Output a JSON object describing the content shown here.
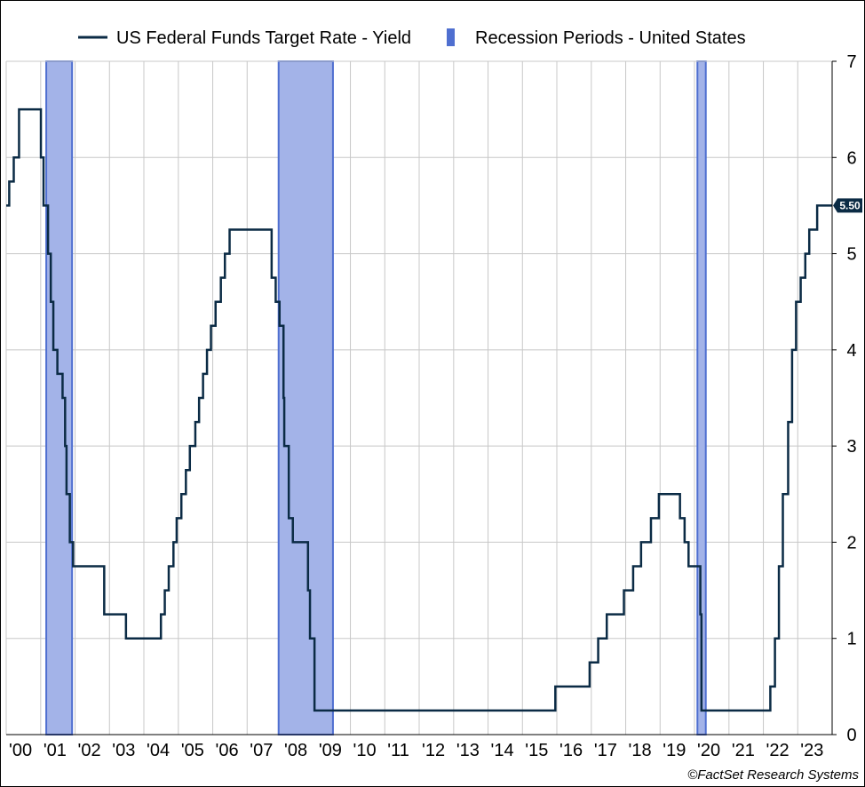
{
  "chart_data": {
    "type": "line",
    "title": "",
    "xlabel": "",
    "ylabel": "",
    "x_tick_labels": [
      "'00",
      "'01",
      "'02",
      "'03",
      "'04",
      "'05",
      "'06",
      "'07",
      "'08",
      "'09",
      "'10",
      "'11",
      "'12",
      "'13",
      "'14",
      "'15",
      "'16",
      "'17",
      "'18",
      "'19",
      "'20",
      "'21",
      "'22",
      "'23"
    ],
    "xlim": [
      "2000-01-01",
      "2024-01-01"
    ],
    "ylim": [
      0,
      7
    ],
    "y_ticks": [
      0,
      1,
      2,
      3,
      4,
      5,
      6,
      7
    ],
    "y_axis_position": "right",
    "grid": true,
    "legend_position": "top",
    "series": [
      {
        "name": "US Federal Funds Target Rate - Yield",
        "color": "#0b2b45",
        "kind": "step",
        "points": [
          [
            "2000-01-01",
            5.5
          ],
          [
            "2000-02-02",
            5.75
          ],
          [
            "2000-03-21",
            6.0
          ],
          [
            "2000-05-16",
            6.5
          ],
          [
            "2001-01-03",
            6.0
          ],
          [
            "2001-01-31",
            5.5
          ],
          [
            "2001-03-20",
            5.0
          ],
          [
            "2001-04-18",
            4.5
          ],
          [
            "2001-05-15",
            4.0
          ],
          [
            "2001-06-27",
            3.75
          ],
          [
            "2001-08-21",
            3.5
          ],
          [
            "2001-09-17",
            3.0
          ],
          [
            "2001-10-02",
            2.5
          ],
          [
            "2001-11-06",
            2.0
          ],
          [
            "2001-12-11",
            1.75
          ],
          [
            "2002-11-06",
            1.25
          ],
          [
            "2003-06-25",
            1.0
          ],
          [
            "2004-06-30",
            1.25
          ],
          [
            "2004-08-10",
            1.5
          ],
          [
            "2004-09-21",
            1.75
          ],
          [
            "2004-11-10",
            2.0
          ],
          [
            "2004-12-14",
            2.25
          ],
          [
            "2005-02-02",
            2.5
          ],
          [
            "2005-03-22",
            2.75
          ],
          [
            "2005-05-03",
            3.0
          ],
          [
            "2005-06-30",
            3.25
          ],
          [
            "2005-08-09",
            3.5
          ],
          [
            "2005-09-20",
            3.75
          ],
          [
            "2005-11-01",
            4.0
          ],
          [
            "2005-12-13",
            4.25
          ],
          [
            "2006-01-31",
            4.5
          ],
          [
            "2006-03-28",
            4.75
          ],
          [
            "2006-05-10",
            5.0
          ],
          [
            "2006-06-29",
            5.25
          ],
          [
            "2007-09-18",
            4.75
          ],
          [
            "2007-10-31",
            4.5
          ],
          [
            "2007-12-11",
            4.25
          ],
          [
            "2008-01-22",
            3.5
          ],
          [
            "2008-01-30",
            3.0
          ],
          [
            "2008-03-18",
            2.25
          ],
          [
            "2008-04-30",
            2.0
          ],
          [
            "2008-10-08",
            1.5
          ],
          [
            "2008-10-29",
            1.0
          ],
          [
            "2008-12-16",
            0.25
          ],
          [
            "2015-12-16",
            0.5
          ],
          [
            "2016-12-14",
            0.75
          ],
          [
            "2017-03-15",
            1.0
          ],
          [
            "2017-06-14",
            1.25
          ],
          [
            "2017-12-13",
            1.5
          ],
          [
            "2018-03-21",
            1.75
          ],
          [
            "2018-06-13",
            2.0
          ],
          [
            "2018-09-26",
            2.25
          ],
          [
            "2018-12-19",
            2.5
          ],
          [
            "2019-07-31",
            2.25
          ],
          [
            "2019-09-18",
            2.0
          ],
          [
            "2019-10-30",
            1.75
          ],
          [
            "2020-03-03",
            1.25
          ],
          [
            "2020-03-15",
            0.25
          ],
          [
            "2022-03-16",
            0.5
          ],
          [
            "2022-05-04",
            1.0
          ],
          [
            "2022-06-15",
            1.75
          ],
          [
            "2022-07-27",
            2.5
          ],
          [
            "2022-09-21",
            3.25
          ],
          [
            "2022-11-02",
            4.0
          ],
          [
            "2022-12-14",
            4.5
          ],
          [
            "2023-02-01",
            4.75
          ],
          [
            "2023-03-22",
            5.0
          ],
          [
            "2023-05-03",
            5.25
          ],
          [
            "2023-07-26",
            5.5
          ],
          [
            "2024-01-01",
            5.5
          ]
        ]
      },
      {
        "name": "Recession Periods - United States",
        "color": "#4f6fd0",
        "kind": "bands",
        "periods": [
          [
            "2001-03-01",
            "2001-11-30"
          ],
          [
            "2007-12-01",
            "2009-06-30"
          ],
          [
            "2020-02-01",
            "2020-04-30"
          ]
        ]
      }
    ],
    "last_value_label": "5.50"
  },
  "footer": {
    "copyright": "©FactSet Research Systems"
  }
}
